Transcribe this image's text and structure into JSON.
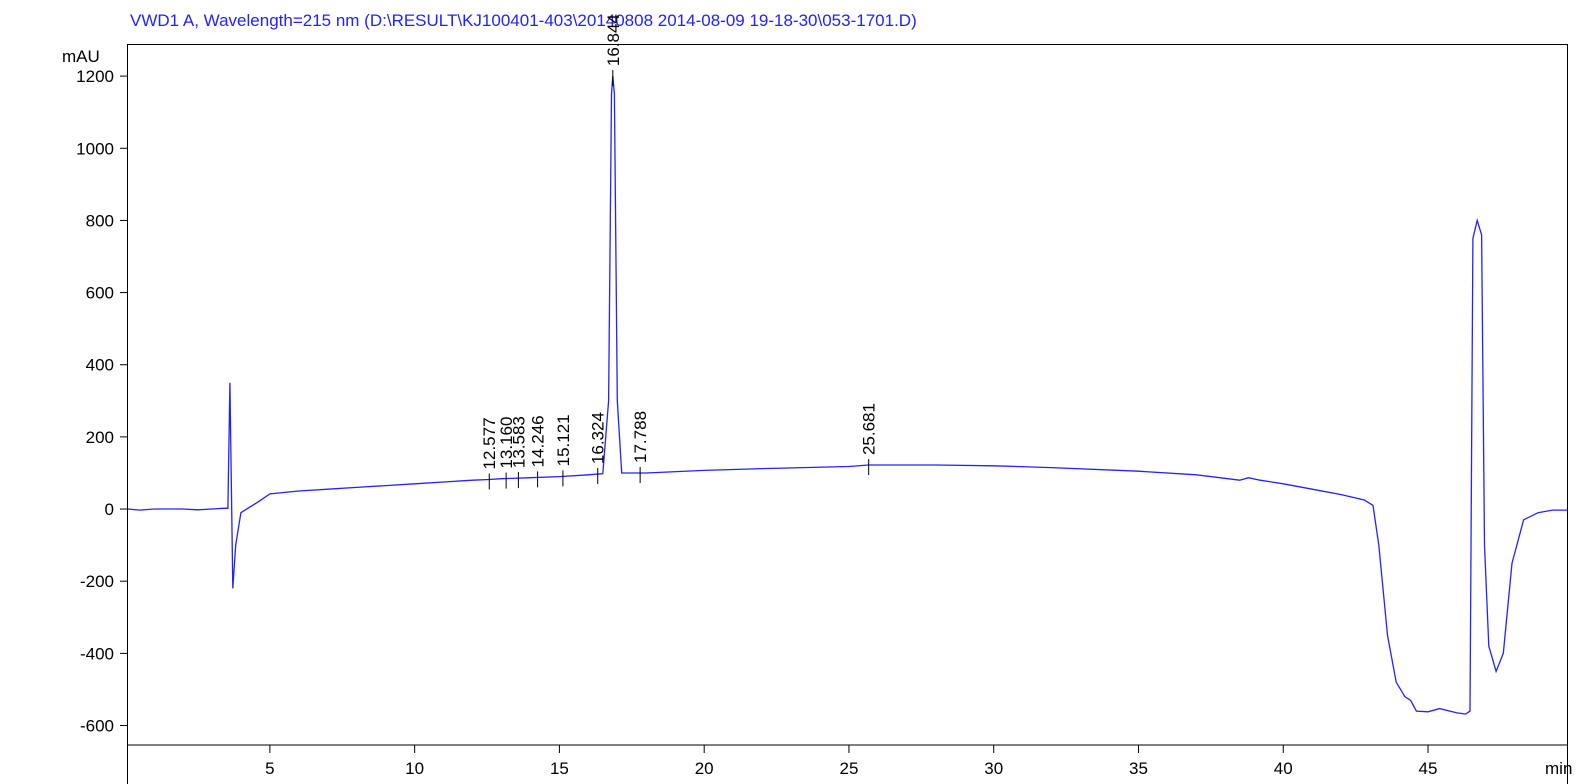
{
  "chart_data": {
    "type": "line",
    "title": "VWD1 A, Wavelength=215 nm (D:\\RESULT\\KJ100401-403\\20140808 2014-08-09 19-18-30\\053-1701.D)",
    "y_label": "mAU",
    "x_label": "min",
    "xlim": [
      0.1,
      49.8
    ],
    "xticks": [
      5,
      10,
      15,
      20,
      25,
      30,
      35,
      40,
      45
    ],
    "ylim": [
      -654,
      1289
    ],
    "yticks": [
      -600,
      -400,
      -200,
      0,
      200,
      400,
      600,
      800,
      1000,
      1200
    ],
    "x": [
      0.1,
      0.5,
      1,
      2,
      2.5,
      3,
      3.4,
      3.55,
      3.62,
      3.68,
      3.72,
      3.82,
      4.0,
      4.3,
      4.6,
      5,
      6,
      7,
      8,
      9,
      10,
      11,
      12,
      12.577,
      13,
      14,
      15,
      16,
      16.5,
      16.7,
      16.8,
      16.844,
      16.9,
      17.0,
      17.15,
      18,
      20,
      22,
      25,
      25.681,
      28,
      30,
      32,
      35,
      37,
      38.5,
      38.8,
      39.2,
      40,
      41,
      42,
      42.8,
      43.1,
      43.3,
      43.6,
      43.9,
      44.2,
      44.4,
      44.6,
      45,
      45.4,
      46,
      46.3,
      46.45,
      46.55,
      46.7,
      46.85,
      46.95,
      47.1,
      47.35,
      47.6,
      47.9,
      48.3,
      48.8,
      49.3,
      49.8
    ],
    "series": [
      {
        "name": "VWD1 A",
        "color": "#2222ff",
        "values": [
          0,
          -3,
          0,
          0,
          -2,
          0,
          2,
          2,
          350,
          0,
          -220,
          -100,
          -10,
          5,
          20,
          42,
          50,
          55,
          60,
          65,
          70,
          75,
          80,
          82,
          84,
          87,
          90,
          95,
          98,
          300,
          1150,
          1200,
          1150,
          300,
          100,
          100,
          107,
          112,
          118,
          122,
          122,
          120,
          115,
          105,
          95,
          80,
          87,
          80,
          70,
          55,
          40,
          25,
          10,
          -100,
          -350,
          -480,
          -520,
          -530,
          -560,
          -562,
          -553,
          -565,
          -568,
          -560,
          750,
          800,
          760,
          -100,
          -380,
          -450,
          -400,
          -150,
          -30,
          -10,
          -3,
          -3
        ]
      }
    ],
    "peaks": [
      {
        "value": 12.577,
        "label": "12.577"
      },
      {
        "value": 13.16,
        "label": "13.160"
      },
      {
        "value": 13.583,
        "label": "13.583"
      },
      {
        "value": 14.246,
        "label": "14.246"
      },
      {
        "value": 15.121,
        "label": "15.121"
      },
      {
        "value": 16.324,
        "label": "16.324"
      },
      {
        "value": 16.844,
        "label": "16.844"
      },
      {
        "value": 17.788,
        "label": "17.788"
      },
      {
        "value": 25.681,
        "label": "25.681"
      }
    ]
  }
}
